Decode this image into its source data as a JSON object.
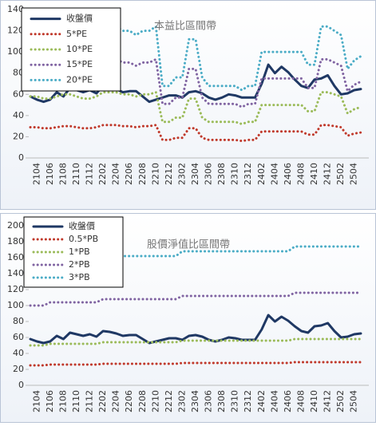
{
  "chart_data": [
    {
      "type": "line",
      "title": "本益比區間帶",
      "categories": [
        null,
        "2104",
        null,
        "2106",
        null,
        "2108",
        null,
        "2110",
        null,
        "2112",
        null,
        "2202",
        null,
        "2204",
        null,
        "2206",
        null,
        "2208",
        null,
        "2210",
        null,
        "2212",
        null,
        "2302",
        null,
        "2304",
        null,
        "2306",
        null,
        "2308",
        null,
        "2310",
        null,
        "2312",
        null,
        "2402",
        null,
        "2404",
        null,
        "2406",
        null,
        "2408",
        null,
        "2410",
        null,
        "2412",
        null,
        "2502",
        null,
        "2504",
        null
      ],
      "series": [
        {
          "name": "收盤價",
          "color": "#1f3864",
          "style": "solid",
          "values": [
            58,
            55,
            53,
            55,
            62,
            58,
            66,
            64,
            62,
            64,
            61,
            68,
            67,
            65,
            62,
            63,
            63,
            58,
            53,
            55,
            57,
            59,
            59,
            57,
            62,
            63,
            61,
            57,
            55,
            57,
            60,
            59,
            57,
            57,
            57,
            70,
            88,
            80,
            86,
            81,
            74,
            68,
            66,
            74,
            75,
            78,
            68,
            60,
            61,
            64,
            65
          ]
        },
        {
          "name": "5*PE",
          "color": "#c0392b",
          "style": "dotted",
          "values": [
            29,
            29,
            28,
            28,
            29,
            30,
            30,
            29,
            28,
            28,
            29,
            31,
            31,
            31,
            30,
            30,
            29,
            30,
            30,
            31,
            17,
            17,
            19,
            19,
            28,
            28,
            19,
            17,
            17,
            17,
            17,
            17,
            16,
            17,
            17,
            25,
            25,
            25,
            25,
            25,
            25,
            25,
            22,
            22,
            31,
            31,
            30,
            29,
            21,
            23,
            24
          ]
        },
        {
          "name": "10*PE",
          "color": "#9bbb59",
          "style": "dotted",
          "values": [
            58,
            58,
            56,
            56,
            58,
            60,
            60,
            58,
            56,
            56,
            58,
            62,
            62,
            62,
            60,
            60,
            58,
            60,
            60,
            62,
            34,
            34,
            38,
            38,
            56,
            56,
            38,
            34,
            34,
            34,
            34,
            34,
            32,
            34,
            34,
            50,
            50,
            50,
            50,
            50,
            50,
            50,
            44,
            44,
            62,
            62,
            60,
            58,
            42,
            46,
            48
          ]
        },
        {
          "name": "15*PE",
          "color": "#8064a2",
          "style": "dotted",
          "values": [
            87,
            87,
            84,
            84,
            87,
            90,
            90,
            87,
            84,
            84,
            87,
            93,
            93,
            93,
            90,
            90,
            87,
            90,
            90,
            93,
            51,
            51,
            57,
            57,
            84,
            84,
            57,
            51,
            51,
            51,
            51,
            51,
            48,
            51,
            51,
            75,
            75,
            75,
            75,
            75,
            75,
            75,
            66,
            66,
            93,
            93,
            90,
            87,
            63,
            69,
            72
          ]
        },
        {
          "name": "20*PE",
          "color": "#4bacc6",
          "style": "dotted",
          "values": [
            116,
            116,
            112,
            112,
            116,
            120,
            120,
            116,
            112,
            112,
            116,
            124,
            124,
            124,
            120,
            120,
            116,
            120,
            120,
            124,
            68,
            68,
            76,
            76,
            112,
            112,
            76,
            68,
            68,
            68,
            68,
            68,
            64,
            68,
            68,
            100,
            100,
            100,
            100,
            100,
            100,
            100,
            88,
            88,
            124,
            124,
            120,
            116,
            84,
            92,
            96
          ]
        }
      ],
      "ylim": [
        0,
        140
      ],
      "yticks": [
        0,
        20,
        40,
        60,
        80,
        100,
        120,
        140
      ],
      "legend": "upper left"
    },
    {
      "type": "line",
      "title": "股價淨值比區間帶",
      "categories": [
        null,
        "2104",
        null,
        "2106",
        null,
        "2108",
        null,
        "2110",
        null,
        "2112",
        null,
        "2202",
        null,
        "2204",
        null,
        "2206",
        null,
        "2208",
        null,
        "2210",
        null,
        "2212",
        null,
        "2302",
        null,
        "2304",
        null,
        "2306",
        null,
        "2308",
        null,
        "2310",
        null,
        "2312",
        null,
        "2402",
        null,
        "2404",
        null,
        "2406",
        null,
        "2408",
        null,
        "2410",
        null,
        "2412",
        null,
        "2502",
        null,
        "2504",
        null
      ],
      "series": [
        {
          "name": "收盤價",
          "color": "#1f3864",
          "style": "solid",
          "values": [
            58,
            55,
            53,
            55,
            62,
            58,
            66,
            64,
            62,
            64,
            61,
            68,
            67,
            65,
            62,
            63,
            63,
            58,
            53,
            55,
            57,
            59,
            59,
            57,
            62,
            63,
            61,
            57,
            55,
            57,
            60,
            59,
            57,
            57,
            57,
            70,
            88,
            80,
            86,
            81,
            74,
            68,
            66,
            74,
            75,
            78,
            68,
            60,
            61,
            64,
            65
          ]
        },
        {
          "name": "0.5*PB",
          "color": "#c0392b",
          "style": "dotted",
          "values": [
            25,
            25,
            25,
            26,
            26,
            26,
            26,
            26,
            26,
            26,
            26,
            27,
            27,
            27,
            27,
            27,
            27,
            27,
            27,
            27,
            27,
            27,
            27,
            28,
            28,
            28,
            28,
            28,
            28,
            28,
            28,
            28,
            28,
            28,
            28,
            28,
            28,
            28,
            28,
            28,
            29,
            29,
            29,
            29,
            29,
            29,
            29,
            29,
            29,
            29,
            29
          ]
        },
        {
          "name": "1*PB",
          "color": "#9bbb59",
          "style": "dotted",
          "values": [
            50,
            50,
            50,
            52,
            52,
            52,
            52,
            52,
            52,
            52,
            52,
            54,
            54,
            54,
            54,
            54,
            54,
            54,
            54,
            54,
            54,
            54,
            54,
            56,
            56,
            56,
            56,
            56,
            56,
            56,
            56,
            56,
            56,
            56,
            56,
            56,
            56,
            56,
            56,
            56,
            58,
            58,
            58,
            58,
            58,
            58,
            58,
            58,
            58,
            58,
            58
          ]
        },
        {
          "name": "2*PB",
          "color": "#8064a2",
          "style": "dotted",
          "values": [
            100,
            100,
            100,
            104,
            104,
            104,
            104,
            104,
            104,
            104,
            104,
            108,
            108,
            108,
            108,
            108,
            108,
            108,
            108,
            108,
            108,
            108,
            108,
            112,
            112,
            112,
            112,
            112,
            112,
            112,
            112,
            112,
            112,
            112,
            112,
            112,
            112,
            112,
            112,
            112,
            116,
            116,
            116,
            116,
            116,
            116,
            116,
            116,
            116,
            116,
            116
          ]
        },
        {
          "name": "3*PB",
          "color": "#4bacc6",
          "style": "dotted",
          "values": [
            150,
            150,
            150,
            156,
            156,
            156,
            156,
            156,
            156,
            156,
            156,
            162,
            162,
            162,
            162,
            162,
            162,
            162,
            162,
            162,
            162,
            162,
            162,
            168,
            168,
            168,
            168,
            168,
            168,
            168,
            168,
            168,
            168,
            168,
            168,
            168,
            168,
            168,
            168,
            168,
            174,
            174,
            174,
            174,
            174,
            174,
            174,
            174,
            174,
            174,
            174
          ]
        }
      ],
      "ylim": [
        0,
        200
      ],
      "yticks": [
        0,
        20,
        40,
        60,
        80,
        100,
        120,
        140,
        160,
        180,
        200
      ],
      "legend": "upper left"
    }
  ]
}
